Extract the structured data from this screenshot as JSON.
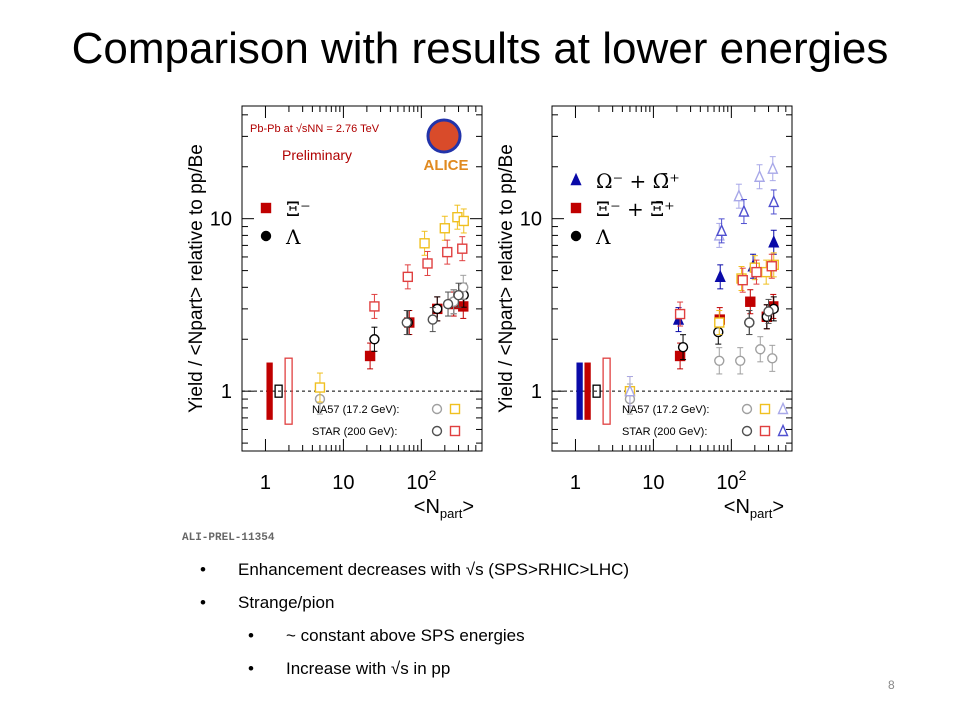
{
  "slide": {
    "title": "Comparison with results at lower energies",
    "page_number": "8",
    "bullets": [
      {
        "level": 1,
        "text": "Enhancement decreases with √s (SPS>RHIC>LHC)"
      },
      {
        "level": 1,
        "text": "Strange/pion"
      },
      {
        "level": 2,
        "text": "~ constant above SPS energies"
      },
      {
        "level": 2,
        "text": "Increase with √s  in pp"
      }
    ],
    "figure_label": "ALI-PREL-11354"
  },
  "colors": {
    "alice_xi": "#c00000",
    "alice_lambda": "#000000",
    "alice_omega": "#0a0aa8",
    "na57_lambda": "#a0a0a0",
    "na57_xi": "#f0c020",
    "na57_omega": "#a8a8e8",
    "star_lambda": "#505050",
    "star_xi": "#e04040",
    "star_omega": "#5050d0"
  },
  "chart_data": [
    {
      "type": "scatter",
      "xscale": "log",
      "yscale": "log",
      "xlim": [
        0.5,
        600
      ],
      "ylim": [
        0.45,
        45
      ],
      "xlabel": "<N_part>",
      "ylabel": "Yield / <N_part> relative to pp/Be",
      "x_ticks": [
        "1",
        "10",
        "10^2"
      ],
      "y_ticks": [
        "1",
        "10"
      ],
      "annotations": [
        "Pb-Pb at √sNN = 2.76 TeV",
        "Preliminary",
        "ALICE"
      ],
      "legend_top": [
        "Ξ⁻",
        "Λ"
      ],
      "legend_bottom": [
        "NA57 (17.2 GeV):",
        "STAR (200 GeV):"
      ],
      "series": [
        {
          "name": "Ξ⁻",
          "role": "alice_xi",
          "marker": "square-filled",
          "x": [
            22,
            70,
            160,
            260,
            345
          ],
          "y": [
            1.6,
            2.5,
            3.0,
            3.2,
            3.1
          ]
        },
        {
          "name": "Λ",
          "role": "alice_lambda",
          "marker": "circle-open",
          "x": [
            25,
            67,
            160,
            260,
            350
          ],
          "y": [
            2.0,
            2.5,
            3.0,
            3.3,
            3.6
          ]
        },
        {
          "role": "na57_lambda",
          "marker": "circle-open",
          "x": [
            5,
            260,
            345
          ],
          "y": [
            0.9,
            3.3,
            4.0
          ]
        },
        {
          "role": "na57_xi",
          "marker": "square-open",
          "x": [
            5,
            110,
            200,
            290,
            350
          ],
          "y": [
            1.05,
            7.2,
            8.8,
            10.2,
            9.7
          ]
        },
        {
          "role": "star_lambda",
          "marker": "circle-open",
          "x": [
            65,
            140,
            220,
            300
          ],
          "y": [
            2.5,
            2.6,
            3.2,
            3.6
          ]
        },
        {
          "role": "star_xi",
          "marker": "square-open",
          "x": [
            25,
            67,
            120,
            215,
            335
          ],
          "y": [
            3.1,
            4.6,
            5.5,
            6.4,
            6.7
          ]
        }
      ],
      "normalization_boxes": [
        "alice_xi",
        "alice_lambda",
        "star_xi"
      ]
    },
    {
      "type": "scatter",
      "xscale": "log",
      "yscale": "log",
      "xlim": [
        0.5,
        600
      ],
      "ylim": [
        0.45,
        45
      ],
      "xlabel": "<N_part>",
      "ylabel": "Yield / <N_part> relative to pp/Be",
      "x_ticks": [
        "1",
        "10",
        "10^2"
      ],
      "y_ticks": [
        "1",
        "10"
      ],
      "legend_top": [
        "Ω⁻ + Ω̄⁺",
        "Ξ⁻ + Ξ̄⁺",
        "Λ"
      ],
      "legend_bottom": [
        "NA57 (17.2 GeV):",
        "STAR (200 GeV):"
      ],
      "series": [
        {
          "name": "Ω⁻ + Ω̄⁺",
          "role": "alice_omega",
          "marker": "triangle-filled",
          "x": [
            21,
            72,
            190,
            350
          ],
          "y": [
            2.6,
            4.6,
            5.3,
            7.3
          ]
        },
        {
          "name": "Ξ⁻ + Ξ̄⁺",
          "role": "alice_xi",
          "marker": "square-filled",
          "x": [
            22,
            71,
            175,
            285,
            345
          ],
          "y": [
            1.6,
            2.6,
            3.3,
            2.7,
            3.1
          ]
        },
        {
          "name": "Λ",
          "role": "alice_lambda",
          "marker": "circle-open",
          "x": [
            24,
            68,
            170,
            285,
            350
          ],
          "y": [
            1.8,
            2.2,
            2.5,
            2.7,
            3.0
          ]
        },
        {
          "role": "na57_lambda",
          "marker": "circle-open",
          "x": [
            5,
            70,
            130,
            235,
            335
          ],
          "y": [
            0.9,
            1.5,
            1.5,
            1.75,
            1.55
          ]
        },
        {
          "role": "na57_xi",
          "marker": "square-open",
          "x": [
            5,
            70,
            135,
            200,
            280,
            350
          ],
          "y": [
            1.0,
            2.5,
            4.5,
            5.2,
            4.9,
            5.4
          ]
        },
        {
          "role": "na57_omega",
          "marker": "triangle-open",
          "x": [
            5,
            70,
            125,
            230,
            340
          ],
          "y": [
            1.0,
            8.0,
            13.5,
            17.5,
            19.5
          ]
        },
        {
          "role": "star_lambda",
          "marker": "circle-open",
          "x": [
            170,
            300
          ],
          "y": [
            2.5,
            2.9
          ]
        },
        {
          "role": "star_xi",
          "marker": "square-open",
          "x": [
            22,
            140,
            210,
            330
          ],
          "y": [
            2.8,
            4.4,
            4.9,
            5.3
          ]
        },
        {
          "role": "star_omega",
          "marker": "triangle-open",
          "x": [
            75,
            145,
            350
          ],
          "y": [
            8.5,
            11.0,
            12.5
          ]
        }
      ],
      "normalization_boxes": [
        "alice_omega",
        "alice_xi",
        "alice_lambda",
        "star_xi"
      ]
    }
  ]
}
